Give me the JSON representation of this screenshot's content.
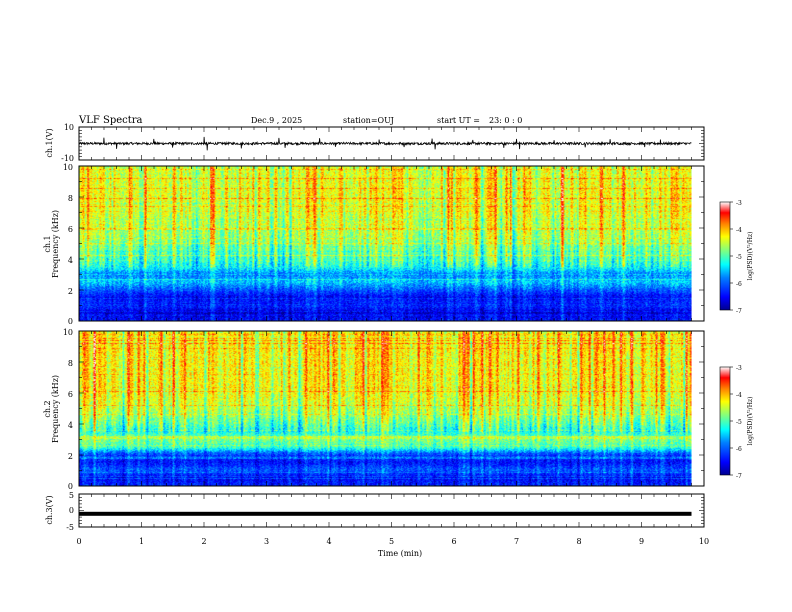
{
  "header": {
    "title": "VLF Spectra",
    "date": "Dec.9 , 2025",
    "station": "station=OUJ",
    "start": "start UT =",
    "start_time": "23: 0 : 0"
  },
  "colors": {
    "trace": "#000000",
    "background": "#ffffff",
    "colormap": [
      "#000090",
      "#0000ff",
      "#0080ff",
      "#00ffff",
      "#80ff80",
      "#ffff00",
      "#ff8000",
      "#ff0000",
      "#ffffff"
    ]
  },
  "chart_data": [
    {
      "type": "line",
      "name": "ch1-waveform",
      "ylabel": "ch.1(V)",
      "ylim": [
        -10,
        10
      ],
      "yticks": [
        "10",
        "-10"
      ],
      "xlim": [
        0,
        10
      ],
      "baseline": 0,
      "range_min": 9.8,
      "spikes": [
        {
          "t": 0.4,
          "v": 3.5
        },
        {
          "t": 0.6,
          "v": -3.2
        },
        {
          "t": 1.2,
          "v": 2.8
        },
        {
          "t": 1.5,
          "v": -2.5
        },
        {
          "t": 2.0,
          "v": 4.0
        },
        {
          "t": 2.05,
          "v": -4.2
        },
        {
          "t": 2.6,
          "v": -3.0
        },
        {
          "t": 3.2,
          "v": 3.4
        },
        {
          "t": 3.3,
          "v": -2.6
        },
        {
          "t": 3.85,
          "v": 3.2
        },
        {
          "t": 4.1,
          "v": -2.0
        },
        {
          "t": 4.8,
          "v": 2.4
        },
        {
          "t": 5.2,
          "v": -2.2
        },
        {
          "t": 5.65,
          "v": 3.0
        },
        {
          "t": 5.7,
          "v": -3.6
        },
        {
          "t": 6.3,
          "v": 2.2
        },
        {
          "t": 6.8,
          "v": -2.6
        },
        {
          "t": 7.0,
          "v": 2.8
        },
        {
          "t": 7.05,
          "v": -3.4
        },
        {
          "t": 7.6,
          "v": 2.0
        },
        {
          "t": 8.1,
          "v": -2.3
        },
        {
          "t": 8.5,
          "v": 2.6
        },
        {
          "t": 9.05,
          "v": -2.2
        },
        {
          "t": 9.3,
          "v": 2.4
        }
      ]
    },
    {
      "type": "heatmap",
      "name": "ch1-spectrogram",
      "ylabel": "Frequency (kHz)",
      "channel_label": "ch.1",
      "ylim": [
        0,
        10
      ],
      "xlim": [
        0,
        10
      ],
      "range_min": 9.8,
      "yticks": [
        "0",
        "2",
        "4",
        "6",
        "8",
        "10"
      ],
      "zlim": [
        -7,
        -3
      ],
      "profile_freq_khz": [
        0,
        0.5,
        1.0,
        1.5,
        2.0,
        2.5,
        3.0,
        3.5,
        4.0,
        5.0,
        6.0,
        7.0,
        8.0,
        9.0,
        10.0
      ],
      "profile_level": [
        -6.4,
        -6.7,
        -6.2,
        -6.5,
        -6.0,
        -5.5,
        -5.8,
        -5.2,
        -5.0,
        -4.7,
        -4.5,
        -4.4,
        -4.3,
        -4.35,
        -4.4
      ],
      "colorbar_label": "log(PSD)(V²/Hz)",
      "colorbar_ticks": [
        "-3",
        "-4",
        "-5",
        "-6",
        "-7"
      ]
    },
    {
      "type": "heatmap",
      "name": "ch2-spectrogram",
      "ylabel": "Frequency (kHz)",
      "channel_label": "ch.2",
      "ylim": [
        0,
        10
      ],
      "xlim": [
        0,
        10
      ],
      "range_min": 9.8,
      "yticks": [
        "0",
        "2",
        "4",
        "6",
        "8",
        "10"
      ],
      "zlim": [
        -7,
        -3
      ],
      "profile_freq_khz": [
        0,
        0.5,
        1.0,
        1.5,
        2.0,
        2.5,
        3.0,
        3.5,
        4.0,
        5.0,
        6.0,
        7.0,
        8.0,
        9.0,
        10.0
      ],
      "profile_level": [
        -6.3,
        -6.5,
        -6.0,
        -6.4,
        -6.2,
        -5.0,
        -4.8,
        -5.2,
        -4.9,
        -4.5,
        -4.3,
        -4.25,
        -4.2,
        -4.2,
        -4.3
      ],
      "colorbar_label": "log(PSD)(V²/Hz)",
      "colorbar_ticks": [
        "-3",
        "-4",
        "-5",
        "-6",
        "-7"
      ]
    },
    {
      "type": "line",
      "name": "ch3-waveform",
      "ylabel": "ch.3(V)",
      "ylim": [
        -5,
        5
      ],
      "yticks": [
        "5",
        "0",
        "-5"
      ],
      "xlim": [
        0,
        10
      ],
      "constant_value": -1.0,
      "range_min": 9.8,
      "xlabel": "Time (min)",
      "xticks": [
        "0",
        "1",
        "2",
        "3",
        "4",
        "5",
        "6",
        "7",
        "8",
        "9",
        "10"
      ]
    }
  ]
}
